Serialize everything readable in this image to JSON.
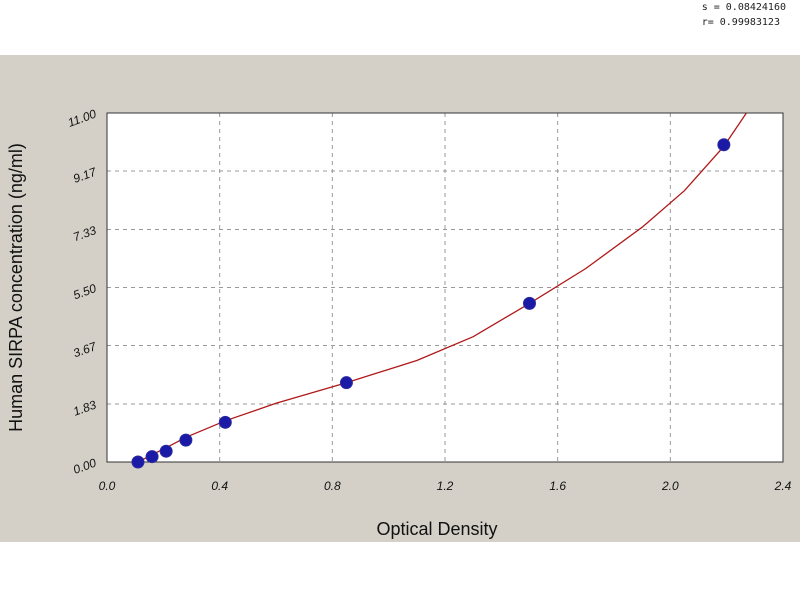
{
  "fit_stats": {
    "s_line": "s = 0.08424160",
    "r_line": "r= 0.99983123"
  },
  "chart_data": {
    "type": "scatter",
    "title": "",
    "xlabel": "Optical Density",
    "ylabel": "Human SIRPA concentration (ng/ml)",
    "xlim": [
      0.0,
      2.4
    ],
    "ylim": [
      0.0,
      11.0
    ],
    "x_ticks": [
      0.0,
      0.4,
      0.8,
      1.2,
      1.6,
      2.0,
      2.4
    ],
    "x_tick_labels": [
      "0.0",
      "0.4",
      "0.8",
      "1.2",
      "1.6",
      "2.0",
      "2.4"
    ],
    "y_ticks": [
      0.0,
      1.83,
      3.67,
      5.5,
      7.33,
      9.17,
      11.0
    ],
    "y_tick_labels": [
      "0.00",
      "1.83",
      "3.67",
      "5.50",
      "7.33",
      "9.17",
      "11.00"
    ],
    "grid": true,
    "series": [
      {
        "kind": "points",
        "x": [
          0.11,
          0.16,
          0.21,
          0.28,
          0.42,
          0.85,
          1.5,
          2.19
        ],
        "y": [
          0.0,
          0.17,
          0.34,
          0.69,
          1.25,
          2.5,
          5.0,
          10.0
        ],
        "color": "#1a1aa6"
      },
      {
        "kind": "fit",
        "x": [
          0.08,
          0.11,
          0.16,
          0.21,
          0.28,
          0.42,
          0.6,
          0.85,
          1.1,
          1.3,
          1.5,
          1.7,
          1.9,
          2.05,
          2.19,
          2.27
        ],
        "y": [
          -0.12,
          0.0,
          0.23,
          0.45,
          0.78,
          1.3,
          1.85,
          2.5,
          3.2,
          3.95,
          5.0,
          6.1,
          7.4,
          8.55,
          9.95,
          11.0
        ],
        "color": "#b01818"
      }
    ]
  }
}
